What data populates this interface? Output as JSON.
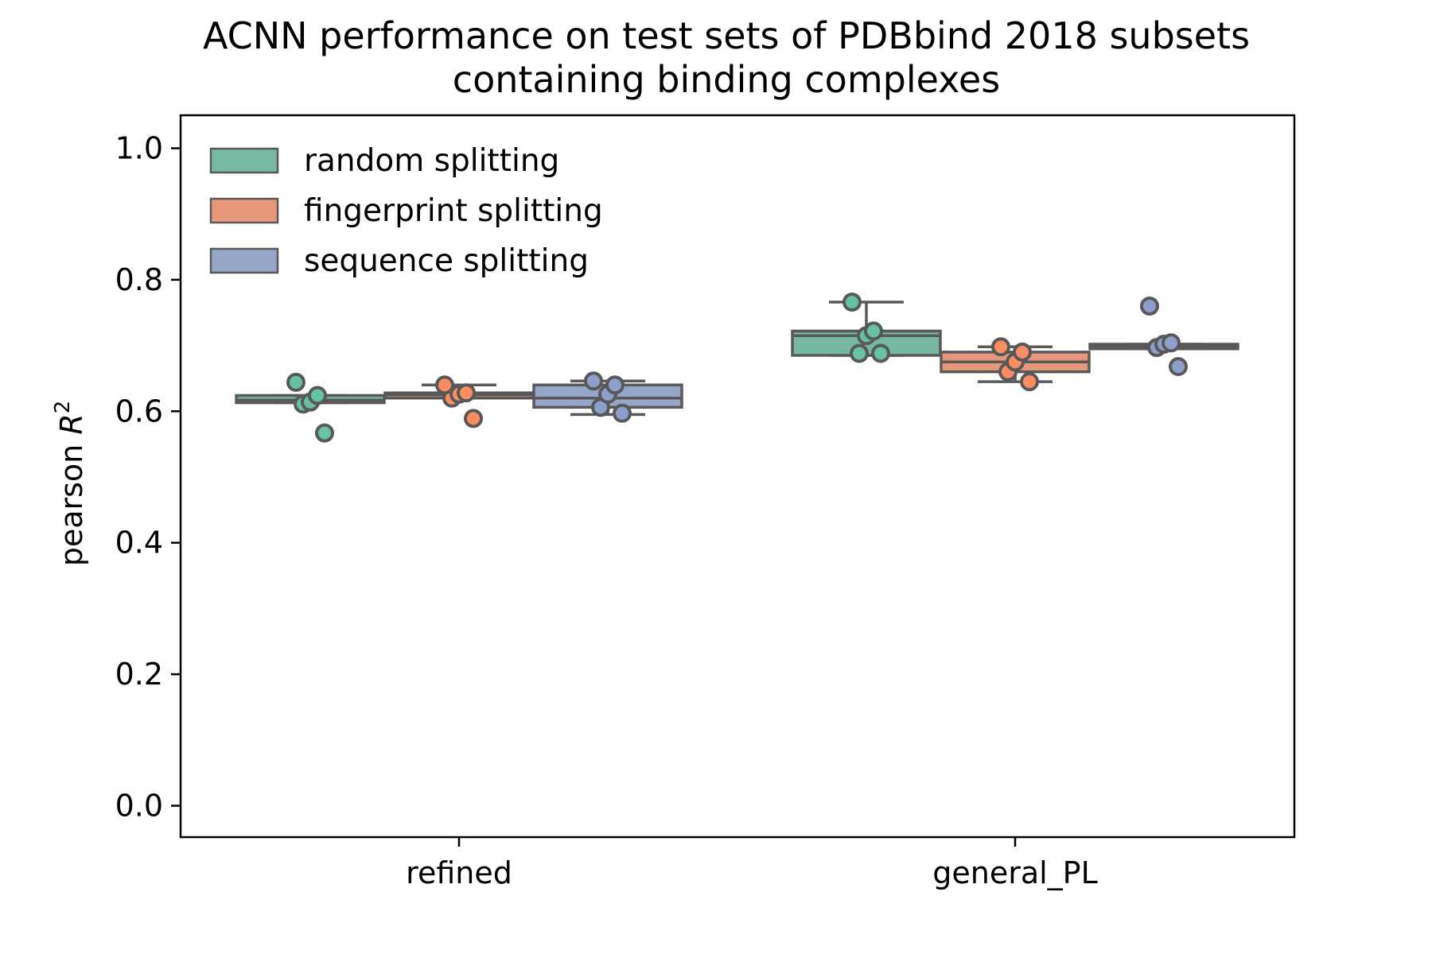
{
  "chart_data": {
    "type": "box",
    "title_line1": "ACNN performance on test sets of PDBbind 2018 subsets",
    "title_line2": "containing binding complexes",
    "ylabel_main": "pearson ",
    "ylabel_var": "R",
    "ylabel_sup": "2",
    "xlabel": "",
    "ylim": [
      -0.05,
      1.05
    ],
    "yticks": [
      0.0,
      0.2,
      0.4,
      0.6,
      0.8,
      1.0
    ],
    "ytick_labels": [
      "0.0",
      "0.2",
      "0.4",
      "0.6",
      "0.8",
      "1.0"
    ],
    "categories": [
      "refined",
      "general_PL"
    ],
    "grid": false,
    "legend_position": "upper left",
    "series": [
      {
        "name": "random splitting",
        "color": "#76b8a0",
        "point_color": "#66c2a5",
        "boxes": [
          {
            "category": "refined",
            "q1": 0.613,
            "median": 0.617,
            "q3": 0.624,
            "whisker_low": 0.613,
            "whisker_high": 0.624,
            "points": [
              0.567,
              0.611,
              0.614,
              0.624,
              0.644
            ]
          },
          {
            "category": "general_PL",
            "q1": 0.685,
            "median": 0.715,
            "q3": 0.722,
            "whisker_low": 0.685,
            "whisker_high": 0.766,
            "points": [
              0.688,
              0.688,
              0.715,
              0.722,
              0.766
            ]
          }
        ]
      },
      {
        "name": "fingerprint splitting",
        "color": "#e8987a",
        "point_color": "#fc8d62",
        "boxes": [
          {
            "category": "refined",
            "q1": 0.62,
            "median": 0.625,
            "q3": 0.628,
            "whisker_low": 0.62,
            "whisker_high": 0.64,
            "points": [
              0.589,
              0.62,
              0.626,
              0.628,
              0.64
            ]
          },
          {
            "category": "general_PL",
            "q1": 0.66,
            "median": 0.675,
            "q3": 0.69,
            "whisker_low": 0.645,
            "whisker_high": 0.698,
            "points": [
              0.645,
              0.66,
              0.675,
              0.69,
              0.698
            ]
          }
        ]
      },
      {
        "name": "sequence splitting",
        "color": "#96a5c8",
        "point_color": "#8da0cb",
        "boxes": [
          {
            "category": "refined",
            "q1": 0.606,
            "median": 0.62,
            "q3": 0.64,
            "whisker_low": 0.595,
            "whisker_high": 0.646,
            "points": [
              0.597,
              0.606,
              0.626,
              0.64,
              0.646
            ]
          },
          {
            "category": "general_PL",
            "q1": 0.695,
            "median": 0.699,
            "q3": 0.702,
            "whisker_low": 0.695,
            "whisker_high": 0.702,
            "points": [
              0.668,
              0.697,
              0.702,
              0.704,
              0.76
            ]
          }
        ]
      }
    ]
  }
}
